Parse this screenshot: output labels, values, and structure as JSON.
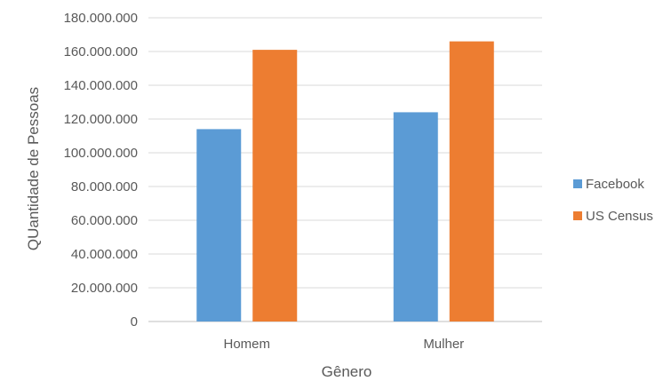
{
  "chart_data": {
    "type": "bar",
    "title": "",
    "xlabel": "Gênero",
    "ylabel": "QUantidade de Pessoas",
    "categories": [
      "Homem",
      "Mulher"
    ],
    "series": [
      {
        "name": "Facebook",
        "values": [
          114000000,
          124000000
        ],
        "color": "#5b9bd5"
      },
      {
        "name": "US Census",
        "values": [
          161000000,
          166000000
        ],
        "color": "#ed7d31"
      }
    ],
    "ylim": [
      0,
      180000000
    ],
    "yticks": [
      "0",
      "20.000.000",
      "40.000.000",
      "60.000.000",
      "80.000.000",
      "100.000.000",
      "120.000.000",
      "140.000.000",
      "160.000.000",
      "180.000.000"
    ],
    "grid": true,
    "legend_position": "right"
  }
}
